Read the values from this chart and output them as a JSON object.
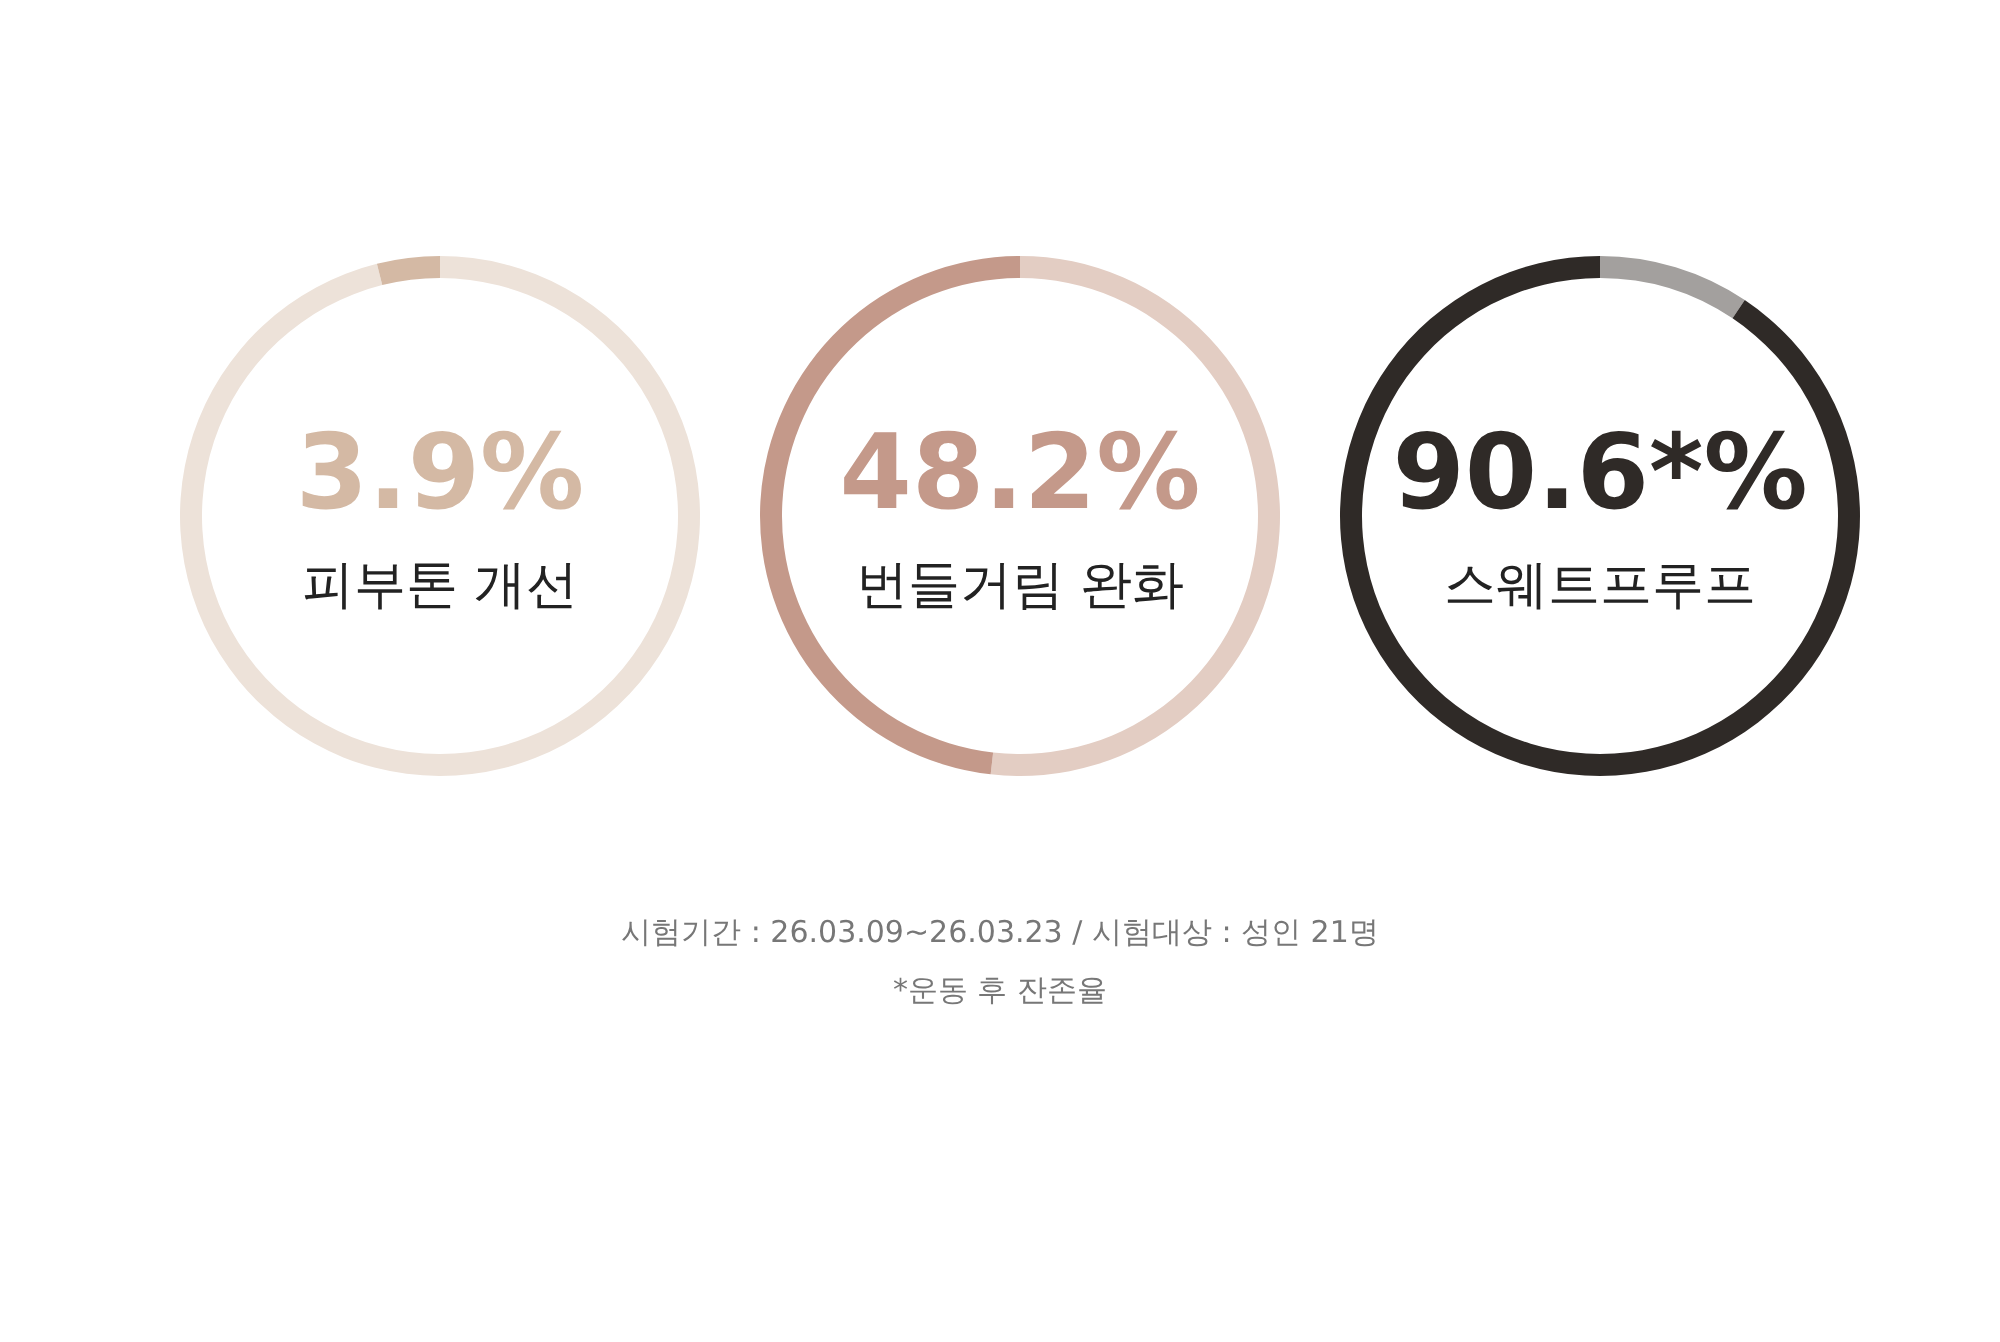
{
  "chart_data": [
    {
      "type": "donut",
      "title": "피부톤 개선",
      "categories": [
        null,
        null
      ],
      "values": [
        96.1,
        3.9
      ],
      "colors": [
        "#ede2d9",
        "#d4b9a4"
      ],
      "value_labels": [
        null,
        "3.9%"
      ]
    },
    {
      "type": "donut",
      "title": "번들거림 완화",
      "categories": [
        null,
        null
      ],
      "values": [
        51.8,
        48.2
      ],
      "colors": [
        "#e3cdc3",
        "#c4998a"
      ],
      "value_labels": [
        null,
        "48.2%"
      ]
    },
    {
      "type": "donut",
      "title": "스웨트프루프",
      "categories": [
        null,
        null
      ],
      "values": [
        9.4,
        90.6
      ],
      "colors": [
        "#a3a09e",
        "#2f2a27"
      ],
      "value_labels": [
        null,
        "90.6*%"
      ],
      "annotations": [
        "시험기간 : 26.03.09~26.03.23 / 시험대상 : 성인 21명",
        "*운동 후 잔존율"
      ]
    }
  ]
}
